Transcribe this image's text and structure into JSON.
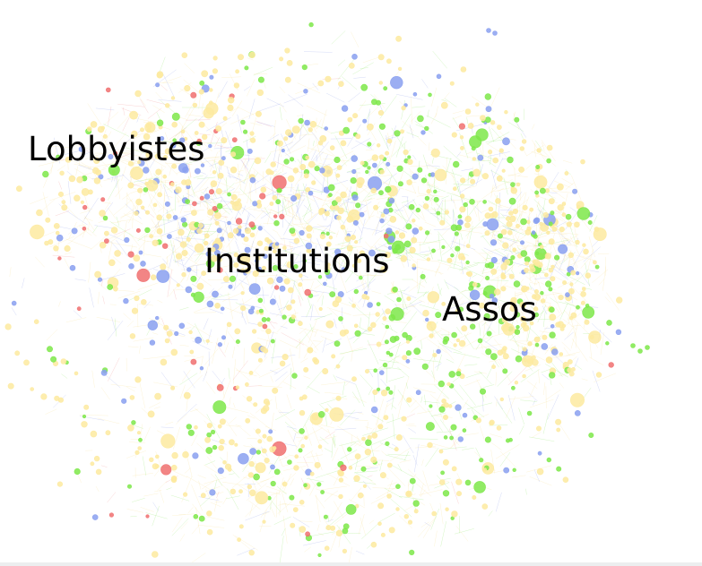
{
  "graph": {
    "clusters": [
      {
        "key": "lobbyistes",
        "label": "Lobbyistes"
      },
      {
        "key": "institutions",
        "label": "Institutions"
      },
      {
        "key": "assos",
        "label": "Assos"
      }
    ]
  },
  "colors": {
    "background": "#ffffff",
    "node_yellow": "#fdeaa0",
    "node_blue": "#8aa0f0",
    "node_green": "#7ee84a",
    "node_red": "#f07070",
    "edge_blue": "#6f86e6",
    "edge_green": "#6fe03a",
    "edge_yellow": "#f6dc8a",
    "label_text": "#000000"
  }
}
